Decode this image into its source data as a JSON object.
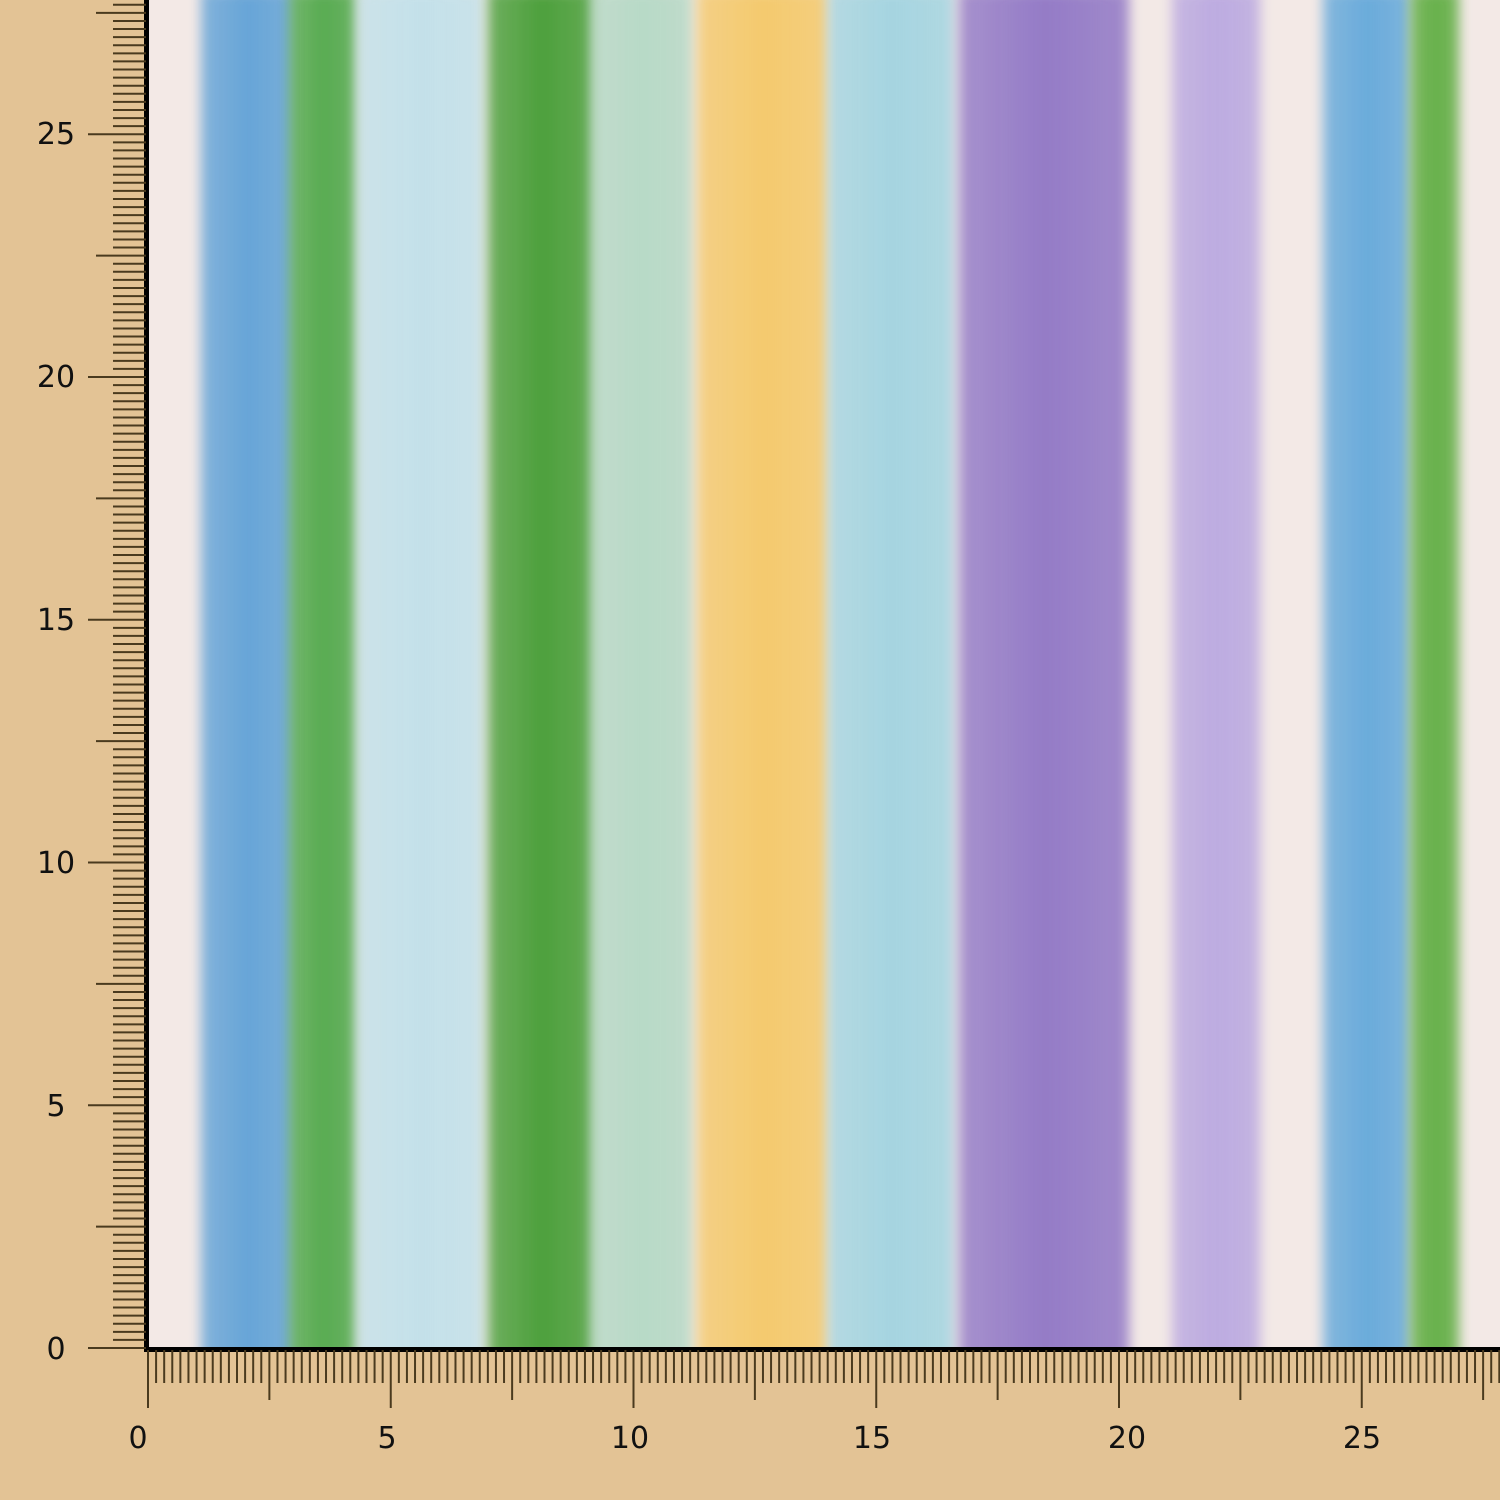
{
  "swatch": {
    "description_colors": {
      "background": "#e3c395",
      "fabric_base": "#f3e9e6",
      "ruler_ticks": "#4a3a1e"
    },
    "stripes": [
      {
        "color": "#5b9fd6",
        "from": 1.1,
        "to": 3.0
      },
      {
        "color": "#4aa644",
        "from": 2.9,
        "to": 4.3
      },
      {
        "color": "#bfe0ea",
        "from": 4.3,
        "to": 6.9
      },
      {
        "color": "#3f9a2e",
        "from": 7.0,
        "to": 9.2
      },
      {
        "color": "#b2d8c4",
        "from": 9.1,
        "to": 11.2
      },
      {
        "color": "#f4c764",
        "from": 11.3,
        "to": 14.0
      },
      {
        "color": "#9fd3e0",
        "from": 14.0,
        "to": 16.6
      },
      {
        "color": "#8c72c4",
        "from": 16.7,
        "to": 20.2
      },
      {
        "color": "#b8a6e0",
        "from": 21.1,
        "to": 22.9
      },
      {
        "color": "#5ea6da",
        "from": 24.2,
        "to": 26.0
      },
      {
        "color": "#5aab3c",
        "from": 26.0,
        "to": 27.0
      }
    ]
  },
  "rulers": {
    "vertical_labels": [
      "0",
      "5",
      "10",
      "15",
      "20",
      "25"
    ],
    "horizontal_labels": [
      "0",
      "5",
      "10",
      "15",
      "20",
      "25"
    ]
  }
}
